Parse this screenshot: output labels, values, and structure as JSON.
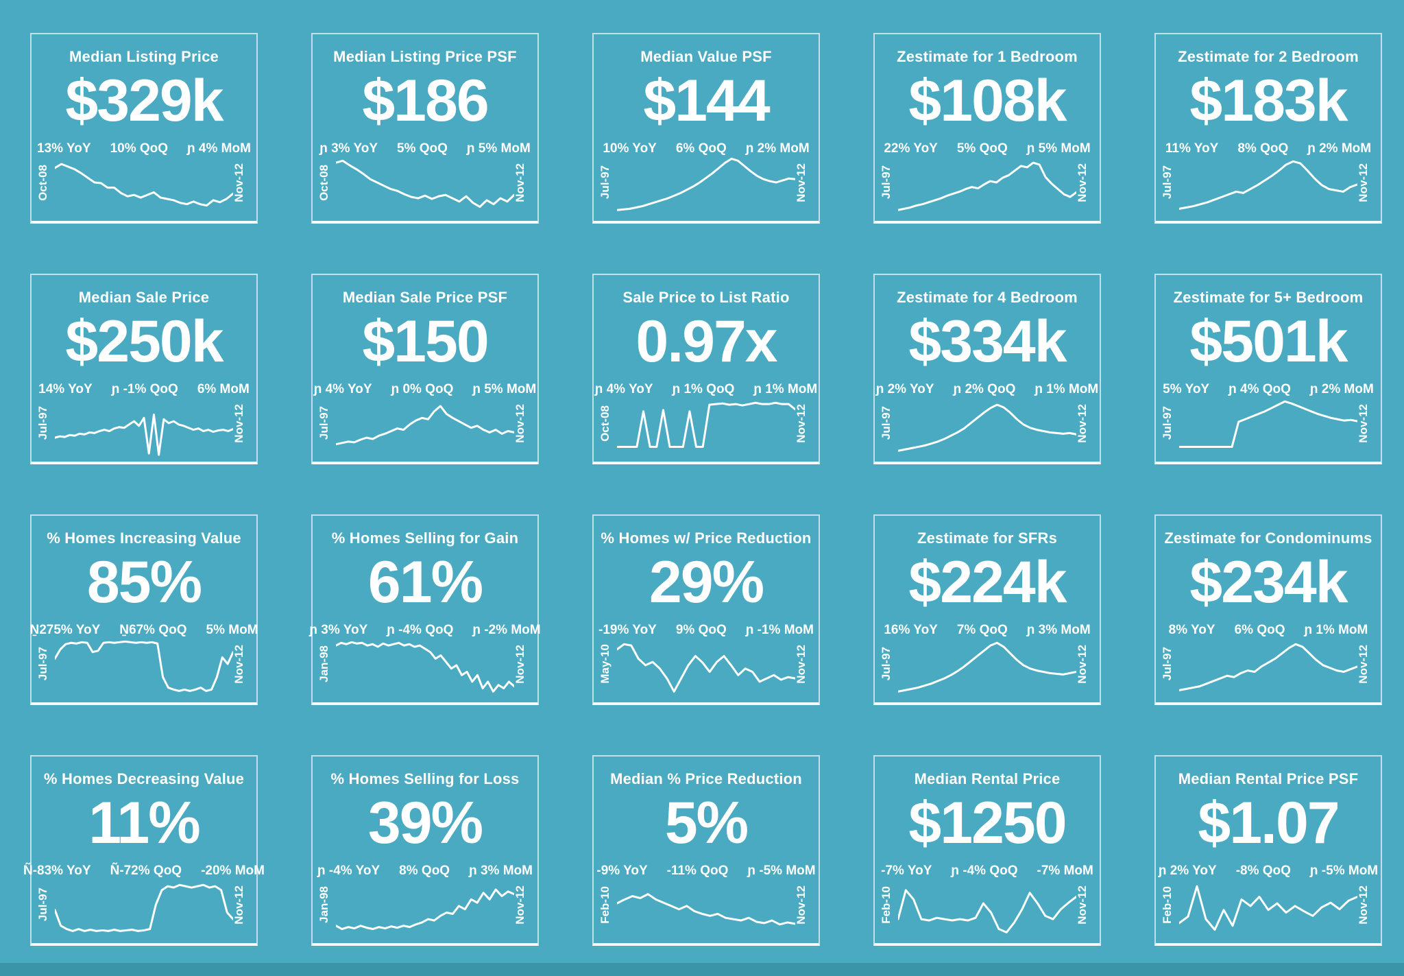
{
  "page": {
    "background_color": "#4aaac2",
    "tile_border_color": "#ffffff",
    "text_color": "#ffffff",
    "bottom_strip_color": "#3a95a9"
  },
  "chart_data": [
    {
      "type": "line",
      "title": "Median Listing Price",
      "value": "$329k",
      "stats": [
        "13% YoY",
        "10% QoQ",
        "ɲ 4% MoM"
      ],
      "x_start": "Oct-08",
      "x_end": "Nov-12",
      "legend": "off",
      "grid": "off",
      "spark_norm": [
        72,
        78,
        74,
        70,
        64,
        57,
        50,
        49,
        42,
        42,
        34,
        29,
        31,
        27,
        31,
        35,
        27,
        25,
        23,
        19,
        17,
        21,
        17,
        15,
        23,
        20,
        25,
        33
      ]
    },
    {
      "type": "line",
      "title": "Median Listing Price PSF",
      "value": "$186",
      "stats": [
        "ɲ 3% YoY",
        "5% QoQ",
        "ɲ 5% MoM"
      ],
      "x_start": "Oct-08",
      "x_end": "Nov-12",
      "legend": "off",
      "grid": "off",
      "spark_norm": [
        80,
        83,
        76,
        70,
        63,
        55,
        50,
        45,
        40,
        37,
        32,
        28,
        26,
        30,
        25,
        29,
        31,
        26,
        21,
        29,
        19,
        13,
        23,
        17,
        26,
        21,
        31
      ]
    },
    {
      "type": "line",
      "title": "Median Value PSF",
      "value": "$144",
      "stats": [
        "10% YoY",
        "6% QoQ",
        "ɲ 2% MoM"
      ],
      "x_start": "Jul-97",
      "x_end": "Nov-12",
      "legend": "off",
      "grid": "off",
      "spark_norm": [
        8,
        9,
        10,
        12,
        14,
        17,
        20,
        23,
        26,
        30,
        34,
        39,
        44,
        50,
        57,
        64,
        72,
        80,
        86,
        83,
        75,
        67,
        60,
        55,
        52,
        50,
        53,
        56,
        55
      ]
    },
    {
      "type": "line",
      "title": "Zestimate for 1 Bedroom",
      "value": "$108k",
      "stats": [
        "22% YoY",
        "5% QoQ",
        "ɲ 5% MoM"
      ],
      "x_start": "Jul-97",
      "x_end": "Nov-12",
      "legend": "off",
      "grid": "off",
      "spark_norm": [
        8,
        10,
        12,
        15,
        17,
        20,
        23,
        26,
        30,
        33,
        36,
        40,
        43,
        41,
        47,
        52,
        50,
        57,
        61,
        68,
        75,
        73,
        80,
        77,
        58,
        48,
        40,
        32,
        28,
        35
      ]
    },
    {
      "type": "line",
      "title": "Zestimate for 2 Bedroom",
      "value": "$183k",
      "stats": [
        "11% YoY",
        "8% QoQ",
        "ɲ 2% MoM"
      ],
      "x_start": "Jul-97",
      "x_end": "Nov-12",
      "legend": "off",
      "grid": "off",
      "spark_norm": [
        10,
        12,
        14,
        17,
        20,
        24,
        28,
        32,
        36,
        34,
        40,
        46,
        53,
        60,
        68,
        77,
        82,
        79,
        68,
        56,
        46,
        40,
        38,
        36,
        43,
        47
      ]
    },
    {
      "type": "line",
      "title": "Median Sale Price",
      "value": "$250k",
      "stats": [
        "14% YoY",
        "ɲ -1% QoQ",
        "6% MoM"
      ],
      "x_start": "Jul-97",
      "x_end": "Nov-12",
      "legend": "off",
      "grid": "off",
      "spark_norm": [
        28,
        30,
        29,
        32,
        31,
        34,
        33,
        36,
        35,
        38,
        40,
        38,
        42,
        44,
        43,
        48,
        53,
        46,
        58,
        4,
        63,
        2,
        56,
        50,
        53,
        48,
        46,
        43,
        40,
        42,
        38,
        40,
        37,
        39,
        40,
        38,
        41
      ]
    },
    {
      "type": "line",
      "title": "Median Sale Price PSF",
      "value": "$150",
      "stats": [
        "ɲ 4% YoY",
        "ɲ 0% QoQ",
        "ɲ 5% MoM"
      ],
      "x_start": "Jul-97",
      "x_end": "Nov-12",
      "legend": "off",
      "grid": "off",
      "spark_norm": [
        18,
        20,
        22,
        21,
        25,
        28,
        26,
        31,
        34,
        38,
        42,
        40,
        48,
        54,
        58,
        56,
        68,
        76,
        64,
        58,
        53,
        48,
        43,
        46,
        40,
        36,
        40,
        34,
        38,
        36
      ]
    },
    {
      "type": "line",
      "title": "Sale Price to List Ratio",
      "value": "0.97x",
      "stats": [
        "ɲ 4% YoY",
        "ɲ 1% QoQ",
        "ɲ 1% MoM"
      ],
      "x_start": "Oct-08",
      "x_end": "Nov-12",
      "legend": "off",
      "grid": "off",
      "spark_norm": [
        14,
        14,
        14,
        14,
        68,
        14,
        14,
        70,
        14,
        14,
        14,
        68,
        14,
        14,
        78,
        79,
        80,
        78,
        79,
        77,
        79,
        81,
        79,
        79,
        81,
        79,
        79,
        71
      ]
    },
    {
      "type": "line",
      "title": "Zestimate for 4 Bedroom",
      "value": "$334k",
      "stats": [
        "ɲ 2% YoY",
        "ɲ 2% QoQ",
        "ɲ 1% MoM"
      ],
      "x_start": "Jul-97",
      "x_end": "Nov-12",
      "legend": "off",
      "grid": "off",
      "spark_norm": [
        8,
        10,
        12,
        14,
        16,
        19,
        22,
        26,
        31,
        36,
        42,
        50,
        58,
        66,
        73,
        78,
        74,
        66,
        56,
        48,
        43,
        40,
        38,
        36,
        35,
        34,
        35,
        33
      ]
    },
    {
      "type": "line",
      "title": "Zestimate for 5+ Bedroom",
      "value": "$501k",
      "stats": [
        "5% YoY",
        "ɲ 4% QoQ",
        "ɲ 2% MoM"
      ],
      "x_start": "Jul-97",
      "x_end": "Nov-12",
      "legend": "off",
      "grid": "off",
      "spark_norm": [
        14,
        14,
        14,
        14,
        14,
        14,
        14,
        14,
        14,
        52,
        56,
        60,
        64,
        68,
        73,
        78,
        83,
        80,
        76,
        72,
        68,
        64,
        61,
        58,
        56,
        54,
        55,
        53
      ]
    },
    {
      "type": "line",
      "title": "% Homes Increasing Value",
      "value": "85%",
      "stats": [
        "Ṉ275% YoY",
        "Ṉ67% QoQ",
        "5% MoM"
      ],
      "x_start": "Jul-97",
      "x_end": "Nov-12",
      "legend": "off",
      "grid": "off",
      "spark_norm": [
        58,
        72,
        80,
        82,
        81,
        83,
        82,
        68,
        70,
        82,
        83,
        82,
        83,
        84,
        83,
        82,
        83,
        82,
        83,
        81,
        30,
        14,
        11,
        9,
        11,
        9,
        11,
        14,
        9,
        11,
        30,
        60,
        50,
        68
      ]
    },
    {
      "type": "line",
      "title": "% Homes Selling for Gain",
      "value": "61%",
      "stats": [
        "ɲ 3% YoY",
        "ɲ -4% QoQ",
        "ɲ -2% MoM"
      ],
      "x_start": "Jan-98",
      "x_end": "Nov-12",
      "legend": "off",
      "grid": "off",
      "spark_norm": [
        78,
        82,
        80,
        83,
        81,
        82,
        78,
        80,
        76,
        81,
        78,
        80,
        82,
        78,
        80,
        76,
        78,
        73,
        68,
        58,
        63,
        53,
        43,
        48,
        33,
        38,
        23,
        33,
        13,
        23,
        8,
        18,
        13,
        23,
        16
      ]
    },
    {
      "type": "line",
      "title": "% Homes w/ Price Reduction",
      "value": "29%",
      "stats": [
        "-19% YoY",
        "9% QoQ",
        "ɲ -1% MoM"
      ],
      "x_start": "May-10",
      "x_end": "Nov-12",
      "legend": "off",
      "grid": "off",
      "spark_norm": [
        72,
        80,
        78,
        58,
        48,
        53,
        43,
        28,
        8,
        28,
        48,
        62,
        52,
        38,
        53,
        62,
        48,
        33,
        43,
        38,
        23,
        28,
        33,
        26,
        30,
        28
      ]
    },
    {
      "type": "line",
      "title": "Zestimate for SFRs",
      "value": "$224k",
      "stats": [
        "16% YoY",
        "7% QoQ",
        "ɲ 3% MoM"
      ],
      "x_start": "Jul-97",
      "x_end": "Nov-12",
      "legend": "off",
      "grid": "off",
      "spark_norm": [
        8,
        10,
        12,
        14,
        17,
        20,
        24,
        28,
        33,
        39,
        46,
        54,
        62,
        70,
        78,
        82,
        76,
        66,
        56,
        48,
        43,
        40,
        38,
        36,
        35,
        34,
        36,
        38
      ]
    },
    {
      "type": "line",
      "title": "Zestimate for Condominums",
      "value": "$234k",
      "stats": [
        "8% YoY",
        "6% QoQ",
        "ɲ 1% MoM"
      ],
      "x_start": "Jul-97",
      "x_end": "Nov-12",
      "legend": "off",
      "grid": "off",
      "spark_norm": [
        10,
        12,
        14,
        16,
        20,
        24,
        28,
        32,
        30,
        36,
        40,
        38,
        46,
        52,
        58,
        66,
        74,
        80,
        76,
        66,
        56,
        48,
        44,
        40,
        38,
        42,
        46
      ]
    },
    {
      "type": "line",
      "title": "% Homes Decreasing Value",
      "value": "11%",
      "stats": [
        "Ñ-83% YoY",
        "Ñ-72% QoQ",
        "-20% MoM"
      ],
      "x_start": "Jul-97",
      "x_end": "Nov-12",
      "legend": "off",
      "grid": "off",
      "spark_norm": [
        42,
        18,
        13,
        10,
        13,
        10,
        12,
        10,
        11,
        10,
        12,
        10,
        11,
        12,
        10,
        11,
        13,
        50,
        72,
        78,
        76,
        80,
        78,
        76,
        78,
        80,
        76,
        78,
        72,
        38,
        28
      ]
    },
    {
      "type": "line",
      "title": "% Homes Selling for Loss",
      "value": "39%",
      "stats": [
        "ɲ -4% YoY",
        "8% QoQ",
        "ɲ 3% MoM"
      ],
      "x_start": "Jan-98",
      "x_end": "Nov-12",
      "legend": "off",
      "grid": "off",
      "spark_norm": [
        18,
        13,
        16,
        14,
        18,
        15,
        13,
        16,
        14,
        17,
        15,
        18,
        16,
        20,
        23,
        28,
        26,
        33,
        38,
        36,
        48,
        43,
        58,
        53,
        68,
        58,
        73,
        63,
        70,
        66
      ]
    },
    {
      "type": "line",
      "title": "Median % Price Reduction",
      "value": "5%",
      "stats": [
        "-9% YoY",
        "-11% QoQ",
        "ɲ -5% MoM"
      ],
      "x_start": "Feb-10",
      "x_end": "Nov-12",
      "legend": "off",
      "grid": "off",
      "spark_norm": [
        52,
        58,
        63,
        60,
        66,
        58,
        53,
        48,
        43,
        48,
        40,
        36,
        33,
        36,
        30,
        28,
        26,
        30,
        24,
        22,
        26,
        20,
        23,
        21
      ]
    },
    {
      "type": "line",
      "title": "Median Rental Price",
      "value": "$1250",
      "stats": [
        "-7% YoY",
        "ɲ -4% QoQ",
        "-7% MoM"
      ],
      "x_start": "Feb-10",
      "x_end": "Nov-12",
      "legend": "off",
      "grid": "off",
      "spark_norm": [
        28,
        72,
        58,
        28,
        26,
        30,
        28,
        26,
        28,
        26,
        30,
        52,
        38,
        13,
        8,
        23,
        43,
        68,
        52,
        33,
        28,
        43,
        53,
        62
      ]
    },
    {
      "type": "line",
      "title": "Median Rental Price PSF",
      "value": "$1.07",
      "stats": [
        "ɲ 2% YoY",
        "-8% QoQ",
        "ɲ -5% MoM"
      ],
      "x_start": "Feb-10",
      "x_end": "Nov-12",
      "legend": "off",
      "grid": "off",
      "spark_norm": [
        22,
        32,
        78,
        28,
        12,
        42,
        18,
        58,
        48,
        62,
        42,
        52,
        38,
        48,
        40,
        33,
        46,
        53,
        43,
        56,
        62
      ]
    }
  ]
}
